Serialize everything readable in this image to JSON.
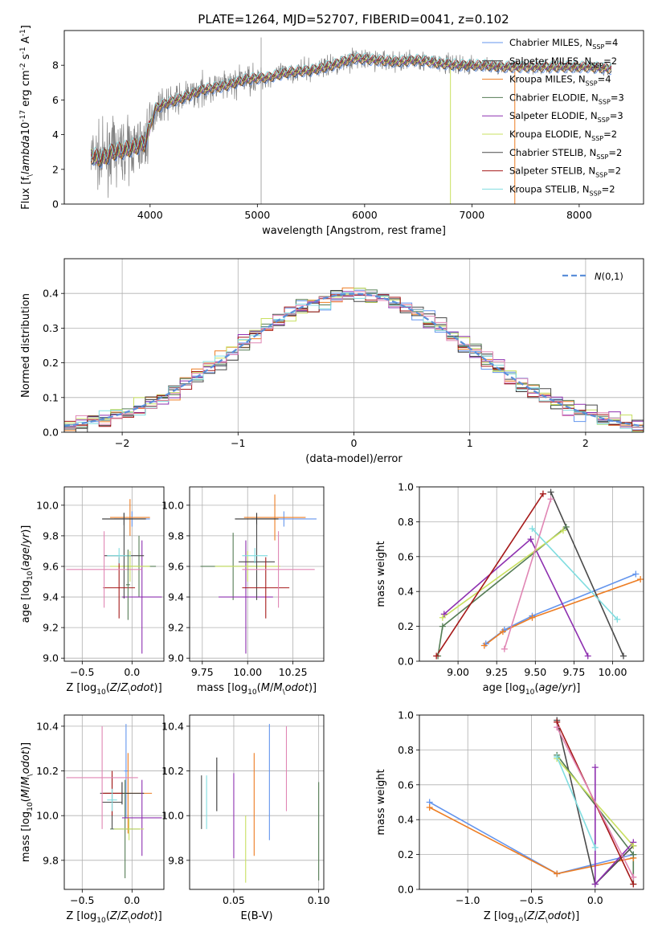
{
  "title": "PLATE=1264, MJD=52707, FIBERID=0041, z=0.102",
  "colors": {
    "chabrier_miles": "#6495ed",
    "salpeter_miles": "#333333",
    "kroupa_miles": "#ed7d23",
    "chabrier_elodie": "#557d55",
    "salpeter_elodie": "#8e30b0",
    "kroupa_elodie": "#c8e060",
    "chabrier_stelib": "#4a4a4a",
    "salpeter_stelib": "#a61a1a",
    "kroupa_stelib": "#80dde0",
    "pink_model": "#e086b4",
    "data_grey": "#808080"
  },
  "chart_data": [
    {
      "id": "spectrum",
      "type": "line",
      "xlabel": "wavelength [Angstrom, rest frame]",
      "ylabel": "Flux [f$_\\lambda$10$^{-17}$ erg cm$^{-2}$ s$^{-1}$ A$^{-1}$]",
      "xlim": [
        3200,
        8600
      ],
      "ylim": [
        0,
        10
      ],
      "xticks": [
        "4000",
        "5000",
        "6000",
        "7000",
        "8000"
      ],
      "yticks": [
        "0",
        "2",
        "4",
        "6",
        "8"
      ],
      "grid": false,
      "legend_position": "upper right",
      "continuum_x": [
        3450,
        3550,
        3650,
        3750,
        3850,
        3950,
        4050,
        4150,
        4300,
        4500,
        4700,
        4900,
        5100,
        5300,
        5500,
        5700,
        5900,
        6100,
        6300,
        6500,
        6700,
        6900,
        7100,
        7300,
        7500,
        7700,
        7900,
        8100,
        8300
      ],
      "continuum_y": [
        2.8,
        2.6,
        3.0,
        3.1,
        3.3,
        3.5,
        5.5,
        5.8,
        6.1,
        6.6,
        6.8,
        7.2,
        7.3,
        7.6,
        7.7,
        8.0,
        8.4,
        8.3,
        8.2,
        8.3,
        8.1,
        8.0,
        8.0,
        7.9,
        7.9,
        7.9,
        7.9,
        7.9,
        7.8
      ],
      "series": [
        {
          "name": "Chabrier MILES, N$_{SSP}$=4",
          "color": "#6495ed"
        },
        {
          "name": "Salpeter MILES, N$_{SSP}$=2",
          "color": "#333333"
        },
        {
          "name": "Kroupa MILES, N$_{SSP}$=4",
          "color": "#ed7d23"
        },
        {
          "name": "Chabrier ELODIE, N$_{SSP}$=3",
          "color": "#557d55"
        },
        {
          "name": "Salpeter ELODIE, N$_{SSP}$=3",
          "color": "#8e30b0"
        },
        {
          "name": "Kroupa ELODIE, N$_{SSP}$=2",
          "color": "#c8e060"
        },
        {
          "name": "Chabrier STELIB, N$_{SSP}$=2",
          "color": "#4a4a4a"
        },
        {
          "name": "Salpeter STELIB, N$_{SSP}$=2",
          "color": "#a61a1a"
        },
        {
          "name": "Kroupa STELIB, N$_{SSP}$=2",
          "color": "#80dde0"
        }
      ]
    },
    {
      "id": "residuals",
      "type": "line",
      "xlabel": "(data-model)/error",
      "ylabel": "Normed distribution",
      "xlim": [
        -2.5,
        2.5
      ],
      "ylim": [
        0,
        0.5
      ],
      "xticks": [
        "−2",
        "−1",
        "0",
        "1",
        "2"
      ],
      "yticks": [
        "0.0",
        "0.1",
        "0.2",
        "0.3",
        "0.4"
      ],
      "grid": true,
      "legend": "$\\mathcal{N}(0,1)$",
      "legend_position": "upper right",
      "bin_width": 0.1
    },
    {
      "id": "age_vs_Z",
      "type": "scatter",
      "xlabel": "Z [log$_{10}$($Z/Z_\\odot$)]",
      "ylabel": "age  [log$_{10}$($age/yr$)]",
      "xlim": [
        -0.68,
        0.32
      ],
      "ylim": [
        8.98,
        10.12
      ],
      "xticks": [
        "−0.5",
        "0.0"
      ],
      "yticks": [
        "9.0",
        "9.2",
        "9.4",
        "9.6",
        "9.8",
        "10.0"
      ],
      "grid": true,
      "points": [
        {
          "x": 0.0,
          "y": 9.91,
          "xerr": 0.18,
          "yerr": 0.05,
          "color": "#6495ed"
        },
        {
          "x": -0.02,
          "y": 9.92,
          "xerr": 0.2,
          "yerr": 0.12,
          "color": "#ed7d23"
        },
        {
          "x": -0.08,
          "y": 9.91,
          "xerr": 0.22,
          "yerr": 0.04,
          "color": "#333333"
        },
        {
          "x": 0.07,
          "y": 9.6,
          "xerr": 0.17,
          "yerr": 0.2,
          "color": "#557d55"
        },
        {
          "x": 0.1,
          "y": 9.4,
          "xerr": 0.2,
          "yerr": 0.37,
          "color": "#8e30b0"
        },
        {
          "x": -0.02,
          "y": 9.6,
          "xerr": 0.2,
          "yerr": 0.1,
          "color": "#c8e060"
        },
        {
          "x": -0.08,
          "y": 9.67,
          "xerr": 0.2,
          "yerr": 0.28,
          "color": "#4a4a4a"
        },
        {
          "x": -0.13,
          "y": 9.46,
          "xerr": 0.16,
          "yerr": 0.2,
          "color": "#a61a1a"
        },
        {
          "x": -0.13,
          "y": 9.67,
          "xerr": 0.12,
          "yerr": 0.05,
          "color": "#80dde0"
        },
        {
          "x": -0.28,
          "y": 9.58,
          "xerr": 0.38,
          "yerr": 0.25,
          "color": "#e086b4"
        },
        {
          "x": -0.04,
          "y": 9.48,
          "xerr": 0.02,
          "yerr": 0.23,
          "color": "#557d55"
        }
      ]
    },
    {
      "id": "age_vs_mass",
      "type": "scatter",
      "xlabel": "mass [log$_{10}$($M/M_\\odot$)]",
      "ylabel": "",
      "xlim": [
        9.68,
        10.42
      ],
      "ylim": [
        8.98,
        10.12
      ],
      "xticks": [
        "9.75",
        "10.00",
        "10.25"
      ],
      "yticks": [
        "9.0",
        "9.2",
        "9.4",
        "9.6",
        "9.8",
        "10.0"
      ],
      "grid": true,
      "points": [
        {
          "x": 10.2,
          "y": 9.91,
          "xerr": 0.18,
          "yerr": 0.05,
          "color": "#6495ed"
        },
        {
          "x": 10.15,
          "y": 9.92,
          "xerr": 0.17,
          "yerr": 0.15,
          "color": "#ed7d23"
        },
        {
          "x": 10.05,
          "y": 9.91,
          "xerr": 0.12,
          "yerr": 0.04,
          "color": "#333333"
        },
        {
          "x": 9.92,
          "y": 9.6,
          "xerr": 0.18,
          "yerr": 0.22,
          "color": "#557d55"
        },
        {
          "x": 9.99,
          "y": 9.4,
          "xerr": 0.15,
          "yerr": 0.37,
          "color": "#8e30b0"
        },
        {
          "x": 10.0,
          "y": 9.6,
          "xerr": 0.18,
          "yerr": 0.1,
          "color": "#c8e060"
        },
        {
          "x": 10.05,
          "y": 9.63,
          "xerr": 0.1,
          "yerr": 0.25,
          "color": "#4a4a4a"
        },
        {
          "x": 10.1,
          "y": 9.46,
          "xerr": 0.13,
          "yerr": 0.2,
          "color": "#a61a1a"
        },
        {
          "x": 10.04,
          "y": 9.67,
          "xerr": 0.07,
          "yerr": 0.05,
          "color": "#80dde0"
        },
        {
          "x": 10.17,
          "y": 9.58,
          "xerr": 0.2,
          "yerr": 0.25,
          "color": "#e086b4"
        }
      ]
    },
    {
      "id": "massweight_vs_age",
      "type": "line",
      "xlabel": "age  [log$_{10}$($age/yr$)]",
      "ylabel": "mass weight",
      "xlim": [
        8.75,
        10.2
      ],
      "ylim": [
        0,
        1
      ],
      "xticks": [
        "9.00",
        "9.25",
        "9.50",
        "9.75",
        "10.00"
      ],
      "yticks": [
        "0.0",
        "0.2",
        "0.4",
        "0.6",
        "0.8",
        "1.0"
      ],
      "grid": true,
      "series": [
        {
          "color": "#6495ed",
          "x": [
            9.18,
            9.3,
            9.48,
            10.15
          ],
          "y": [
            0.1,
            0.18,
            0.26,
            0.5
          ]
        },
        {
          "color": "#ed7d23",
          "x": [
            9.17,
            9.29,
            9.48,
            10.18
          ],
          "y": [
            0.09,
            0.17,
            0.25,
            0.47
          ]
        },
        {
          "color": "#4a4a4a",
          "x": [
            9.6,
            10.07
          ],
          "y": [
            0.97,
            0.03
          ]
        },
        {
          "color": "#557d55",
          "x": [
            8.87,
            8.9,
            9.7
          ],
          "y": [
            0.03,
            0.2,
            0.77
          ]
        },
        {
          "color": "#8e30b0",
          "x": [
            8.91,
            9.47,
            9.84
          ],
          "y": [
            0.27,
            0.7,
            0.03
          ]
        },
        {
          "color": "#c8e060",
          "x": [
            8.9,
            9.68
          ],
          "y": [
            0.25,
            0.75
          ]
        },
        {
          "color": "#a61a1a",
          "x": [
            8.86,
            9.55
          ],
          "y": [
            0.03,
            0.96
          ]
        },
        {
          "color": "#80dde0",
          "x": [
            9.48,
            10.03
          ],
          "y": [
            0.76,
            0.24
          ]
        },
        {
          "color": "#e086b4",
          "x": [
            9.3,
            9.6
          ],
          "y": [
            0.07,
            0.93
          ]
        }
      ]
    },
    {
      "id": "mass_vs_Z",
      "type": "scatter",
      "xlabel": "Z [log$_{10}$($Z/Z_\\odot$)]",
      "ylabel": "mass [log$_{10}$($M/M_\\odot$)]",
      "xlim": [
        -0.68,
        0.32
      ],
      "ylim": [
        9.67,
        10.45
      ],
      "xticks": [
        "−0.5",
        "0.0"
      ],
      "yticks": [
        "9.8",
        "10.0",
        "10.2",
        "10.4"
      ],
      "grid": true,
      "points": [
        {
          "x": -0.06,
          "y": 10.2,
          "xerr": 0.02,
          "yerr": 0.21,
          "color": "#6495ed"
        },
        {
          "x": -0.04,
          "y": 10.1,
          "xerr": 0.24,
          "yerr": 0.18,
          "color": "#ed7d23"
        },
        {
          "x": -0.1,
          "y": 10.1,
          "xerr": 0.22,
          "yerr": 0.05,
          "color": "#333333"
        },
        {
          "x": -0.07,
          "y": 9.94,
          "xerr": 0.15,
          "yerr": 0.22,
          "color": "#557d55"
        },
        {
          "x": 0.1,
          "y": 9.99,
          "xerr": 0.2,
          "yerr": 0.17,
          "color": "#8e30b0"
        },
        {
          "x": -0.03,
          "y": 9.94,
          "xerr": 0.15,
          "yerr": 0.05,
          "color": "#c8e060"
        },
        {
          "x": -0.2,
          "y": 10.06,
          "xerr": 0.1,
          "yerr": 0.12,
          "color": "#4a4a4a"
        },
        {
          "x": -0.2,
          "y": 10.1,
          "xerr": 0.1,
          "yerr": 0.1,
          "color": "#a61a1a"
        },
        {
          "x": -0.2,
          "y": 10.07,
          "xerr": 0.05,
          "yerr": 0.05,
          "color": "#80dde0"
        },
        {
          "x": -0.3,
          "y": 10.17,
          "xerr": 0.36,
          "yerr": 0.23,
          "color": "#e086b4"
        }
      ]
    },
    {
      "id": "mass_vs_EBV",
      "type": "scatter",
      "xlabel": "E(B-V)",
      "ylabel": "",
      "xlim": [
        0.024,
        0.103
      ],
      "ylim": [
        9.67,
        10.45
      ],
      "xticks": [
        "0.05",
        "0.10"
      ],
      "yticks": [
        "9.8",
        "10.0",
        "10.2",
        "10.4"
      ],
      "grid": true,
      "points": [
        {
          "x": 0.071,
          "y": 10.15,
          "yerr": 0.26,
          "color": "#6495ed"
        },
        {
          "x": 0.062,
          "y": 10.05,
          "yerr": 0.23,
          "color": "#ed7d23"
        },
        {
          "x": 0.04,
          "y": 10.14,
          "yerr": 0.12,
          "color": "#333333"
        },
        {
          "x": 0.1,
          "y": 9.93,
          "yerr": 0.22,
          "color": "#557d55"
        },
        {
          "x": 0.05,
          "y": 10.0,
          "yerr": 0.19,
          "color": "#8e30b0"
        },
        {
          "x": 0.057,
          "y": 9.85,
          "yerr": 0.15,
          "color": "#c8e060"
        },
        {
          "x": 0.031,
          "y": 10.06,
          "yerr": 0.12,
          "color": "#4a4a4a"
        },
        {
          "x": 0.034,
          "y": 10.06,
          "yerr": 0.12,
          "color": "#80dde0"
        },
        {
          "x": 0.081,
          "y": 10.21,
          "yerr": 0.19,
          "color": "#e086b4"
        }
      ]
    },
    {
      "id": "massweight_vs_Z",
      "type": "line",
      "xlabel": "Z [log$_{10}$($Z/Z_\\odot$)]",
      "ylabel": "mass weight",
      "xlim": [
        -1.38,
        0.38
      ],
      "ylim": [
        0,
        1
      ],
      "xticks": [
        "−1.0",
        "−0.5",
        "0.0"
      ],
      "yticks": [
        "0.0",
        "0.2",
        "0.4",
        "0.6",
        "0.8",
        "1.0"
      ],
      "grid": true,
      "series": [
        {
          "color": "#6495ed",
          "x": [
            -1.3,
            -0.3,
            0.3
          ],
          "y": [
            0.5,
            0.09,
            0.2
          ]
        },
        {
          "color": "#ed7d23",
          "x": [
            -1.3,
            -0.3,
            0.3
          ],
          "y": [
            0.47,
            0.09,
            0.18
          ]
        },
        {
          "color": "#4a4a4a",
          "x": [
            -0.3,
            0.0,
            0.3
          ],
          "y": [
            0.97,
            0.03,
            0.25
          ]
        },
        {
          "color": "#557d55",
          "x": [
            -0.3,
            0.3,
            0.3
          ],
          "y": [
            0.77,
            0.2,
            0.03
          ]
        },
        {
          "color": "#8e30b0",
          "x": [
            0.0,
            0.0,
            0.3
          ],
          "y": [
            0.7,
            0.03,
            0.27
          ]
        },
        {
          "color": "#c8e060",
          "x": [
            -0.3,
            0.3
          ],
          "y": [
            0.75,
            0.25
          ]
        },
        {
          "color": "#a61a1a",
          "x": [
            -0.3,
            0.3
          ],
          "y": [
            0.96,
            0.03
          ]
        },
        {
          "color": "#80dde0",
          "x": [
            -0.3,
            0.0
          ],
          "y": [
            0.76,
            0.24
          ]
        },
        {
          "color": "#e086b4",
          "x": [
            -0.3,
            0.3
          ],
          "y": [
            0.93,
            0.07
          ]
        }
      ]
    }
  ]
}
